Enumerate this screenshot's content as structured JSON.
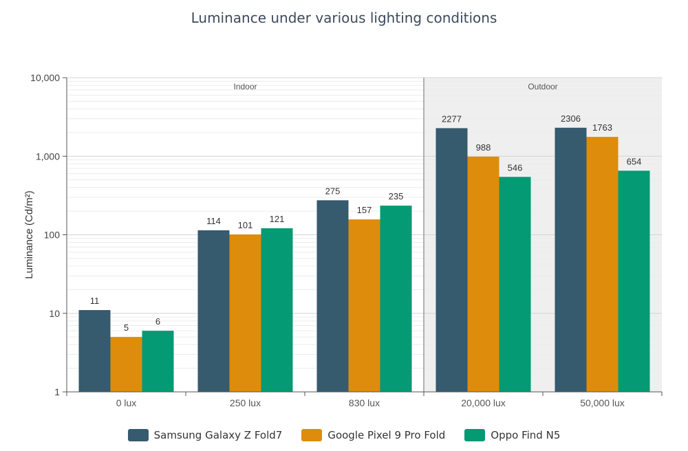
{
  "title": "Luminance under various lighting conditions",
  "colors": {
    "samsung": "#365a6e",
    "google": "#de8c0b",
    "oppo": "#049a74",
    "outdoor_band": "#efefef"
  },
  "chart_data": {
    "type": "bar",
    "title": "Luminance under various lighting conditions",
    "xlabel": "",
    "ylabel": "Luminance (Cd/m²)",
    "yscale": "log",
    "ylim": [
      1,
      10000
    ],
    "yticks": [
      "1",
      "10",
      "100",
      "1,000",
      "10,000"
    ],
    "categories": [
      "0 lux",
      "250 lux",
      "830 lux",
      "20,000 lux",
      "50,000 lux"
    ],
    "bands": [
      {
        "label": "Indoor",
        "categories": [
          "0 lux",
          "250 lux",
          "830 lux"
        ],
        "shaded": false
      },
      {
        "label": "Outdoor",
        "categories": [
          "20,000 lux",
          "50,000 lux"
        ],
        "shaded": true
      }
    ],
    "series": [
      {
        "name": "Samsung Galaxy Z Fold7",
        "color": "#365a6e",
        "values": [
          11,
          114,
          275,
          2277,
          2306
        ]
      },
      {
        "name": "Google Pixel 9 Pro Fold",
        "color": "#de8c0b",
        "values": [
          5,
          101,
          157,
          988,
          1763
        ]
      },
      {
        "name": "Oppo Find N5",
        "color": "#049a74",
        "values": [
          6,
          121,
          235,
          546,
          654
        ]
      }
    ],
    "grid": true,
    "legend": "bottom"
  }
}
